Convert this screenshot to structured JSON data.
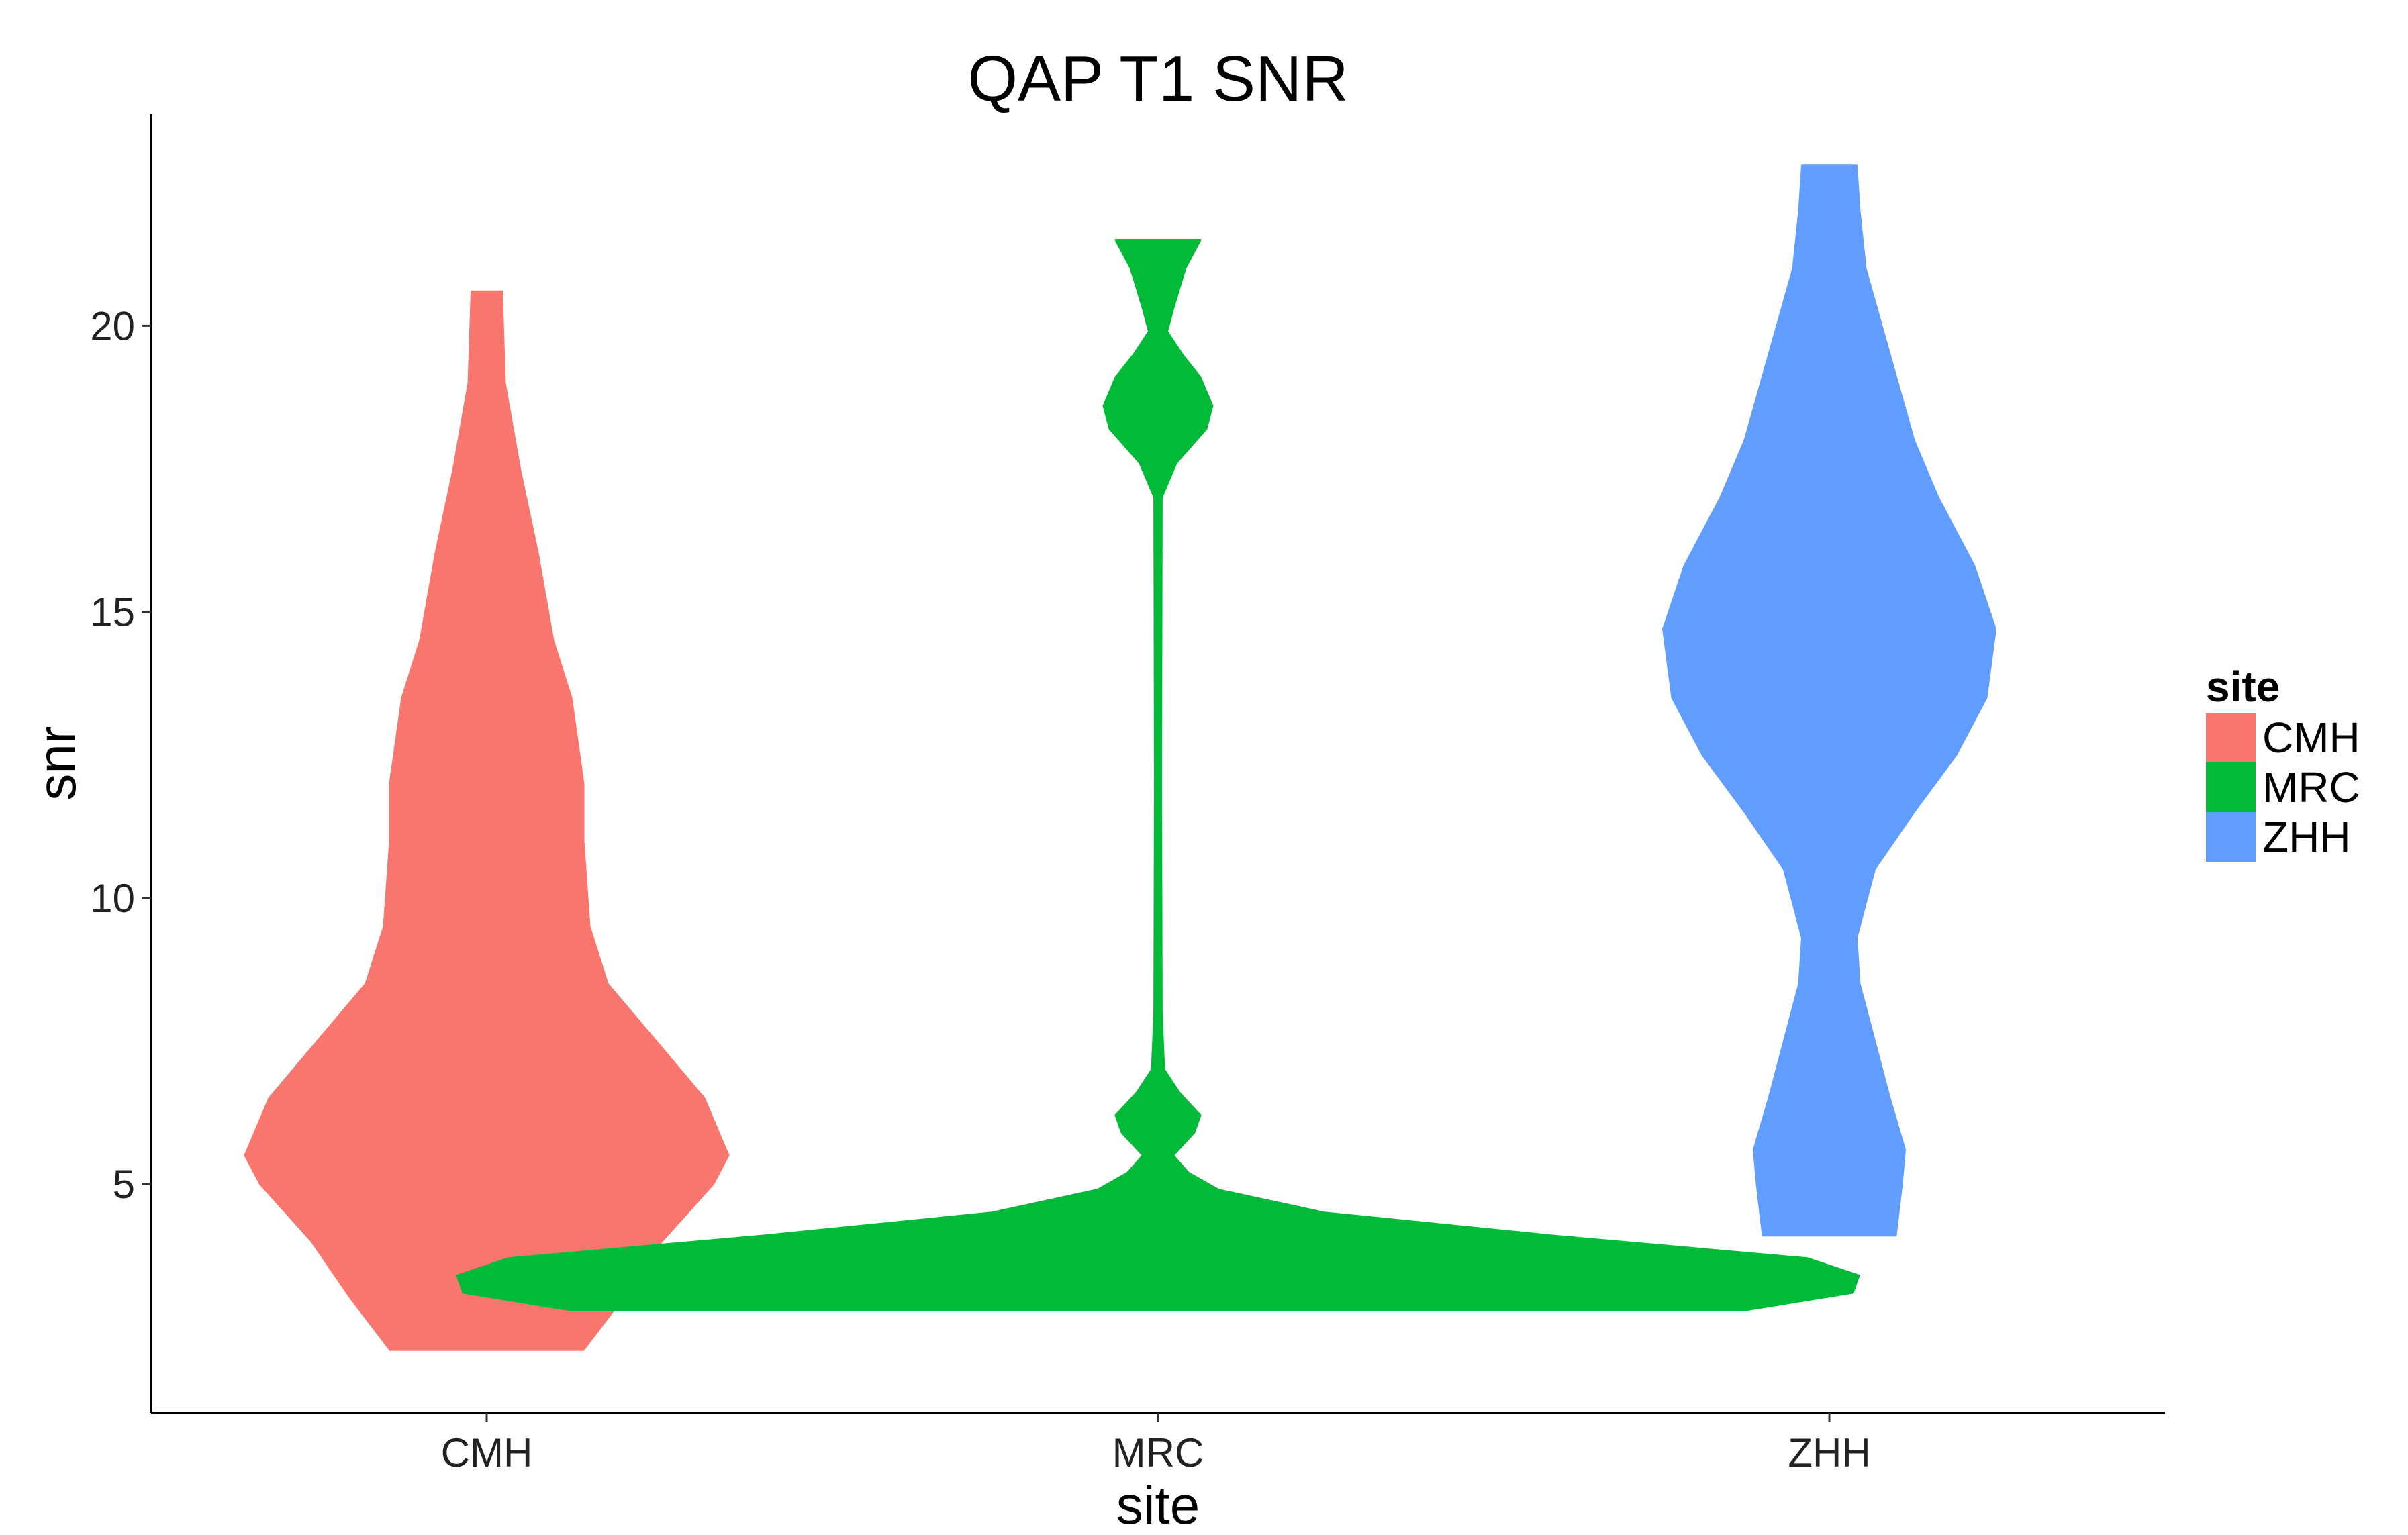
{
  "chart_data": {
    "type": "violin",
    "title": "QAP T1 SNR",
    "xlabel": "site",
    "ylabel": "snr",
    "categories": [
      "CMH",
      "MRC",
      "ZHH"
    ],
    "ylim": [
      1,
      23.7
    ],
    "yticks": [
      5,
      10,
      15,
      20
    ],
    "grid": false,
    "legend": {
      "title": "site",
      "position": "right",
      "entries": [
        "CMH",
        "MRC",
        "ZHH"
      ]
    },
    "colors": {
      "CMH": "#F8766D",
      "MRC": "#00BA38",
      "ZHH": "#619CFF"
    },
    "series": [
      {
        "name": "CMH",
        "min": 2.1,
        "max": 20.6,
        "profile": [
          [
            2.1,
            0.32
          ],
          [
            3.0,
            0.45
          ],
          [
            4.0,
            0.58
          ],
          [
            5.0,
            0.75
          ],
          [
            5.5,
            0.8
          ],
          [
            6.5,
            0.72
          ],
          [
            7.5,
            0.56
          ],
          [
            8.5,
            0.4
          ],
          [
            9.5,
            0.34
          ],
          [
            11,
            0.32
          ],
          [
            12,
            0.32
          ],
          [
            13.5,
            0.28
          ],
          [
            14.5,
            0.22
          ],
          [
            16,
            0.17
          ],
          [
            17.5,
            0.11
          ],
          [
            19,
            0.06
          ],
          [
            20.6,
            0.05
          ]
        ]
      },
      {
        "name": "MRC",
        "min": 2.8,
        "max": 21.5,
        "profile": [
          [
            2.8,
            1.95
          ],
          [
            3.1,
            2.3
          ],
          [
            3.4,
            2.32
          ],
          [
            3.7,
            2.15
          ],
          [
            4.1,
            1.3
          ],
          [
            4.5,
            0.55
          ],
          [
            4.9,
            0.2
          ],
          [
            5.2,
            0.1
          ],
          [
            5.5,
            0.05
          ],
          [
            5.9,
            0.12
          ],
          [
            6.2,
            0.14
          ],
          [
            6.6,
            0.07
          ],
          [
            7.0,
            0.02
          ],
          [
            8,
            0.012
          ],
          [
            12,
            0.01
          ],
          [
            17.0,
            0.012
          ],
          [
            17.6,
            0.06
          ],
          [
            18.2,
            0.16
          ],
          [
            18.6,
            0.18
          ],
          [
            19.1,
            0.14
          ],
          [
            19.5,
            0.08
          ],
          [
            19.9,
            0.03
          ],
          [
            20.3,
            0.05
          ],
          [
            21.0,
            0.09
          ],
          [
            21.5,
            0.14
          ]
        ]
      },
      {
        "name": "ZHH",
        "min": 4.1,
        "max": 22.8,
        "profile": [
          [
            4.1,
            0.22
          ],
          [
            5.0,
            0.24
          ],
          [
            5.6,
            0.25
          ],
          [
            6.5,
            0.2
          ],
          [
            7.5,
            0.15
          ],
          [
            8.5,
            0.1
          ],
          [
            9.3,
            0.09
          ],
          [
            10.5,
            0.15
          ],
          [
            11.5,
            0.28
          ],
          [
            12.5,
            0.42
          ],
          [
            13.5,
            0.52
          ],
          [
            14.7,
            0.55
          ],
          [
            15.8,
            0.48
          ],
          [
            17,
            0.36
          ],
          [
            18,
            0.28
          ],
          [
            19.5,
            0.2
          ],
          [
            21,
            0.12
          ],
          [
            22,
            0.1
          ],
          [
            22.8,
            0.09
          ]
        ]
      }
    ]
  }
}
